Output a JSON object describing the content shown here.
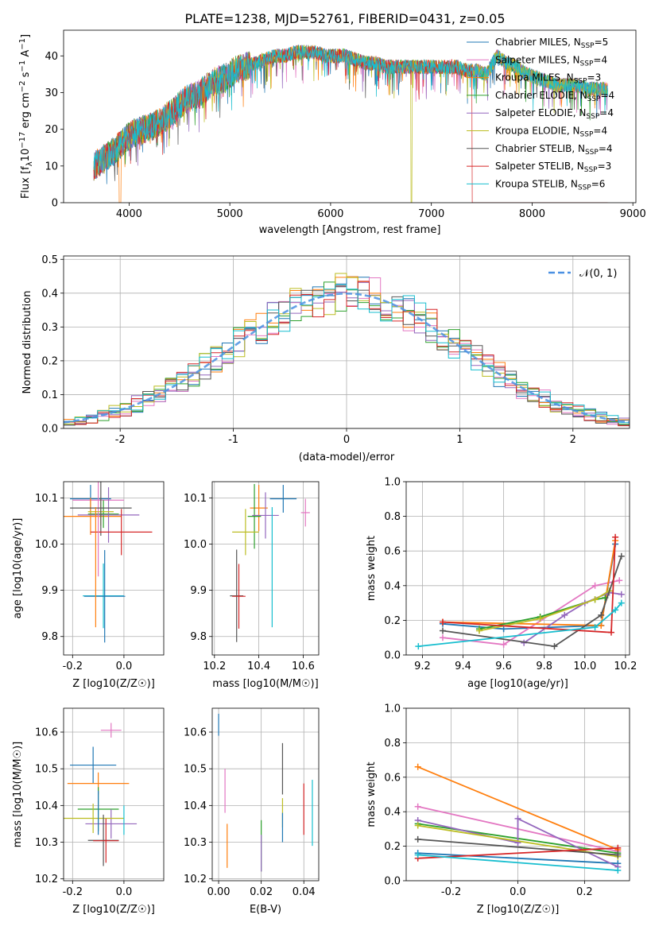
{
  "title": "PLATE=1238, MJD=52761, FIBERID=0431, z=0.05",
  "colors": [
    "#1f77b4",
    "#e377c2",
    "#ff7f0e",
    "#2ca02c",
    "#9467bd",
    "#bcbd22",
    "#555555",
    "#d62728",
    "#17becf"
  ],
  "chart_data": [
    {
      "type": "line",
      "panel": "spectrum",
      "xlabel": "wavelength [Angstrom, rest frame]",
      "ylabel": "Flux [f_λ10^-17 erg cm^-2 s^-1 A^-1]",
      "xlim": [
        3350,
        9030
      ],
      "ylim": [
        0,
        47
      ],
      "x_ticks": [
        4000,
        5000,
        6000,
        7000,
        8000,
        9000
      ],
      "y_ticks": [
        0,
        10,
        20,
        30,
        40
      ],
      "legend_position": "top-right",
      "series": [
        {
          "name": "Chabrier MILES, N_SSP=5",
          "legend_main": "Chabrier MILES, N",
          "legend_tail": "=5"
        },
        {
          "name": "Salpeter MILES, N_SSP=4",
          "legend_main": "Salpeter MILES, N",
          "legend_tail": "=4"
        },
        {
          "name": "Kroupa MILES, N_SSP=3",
          "legend_main": "Kroupa MILES, N",
          "legend_tail": "=3"
        },
        {
          "name": "Chabrier ELODIE, N_SSP=4",
          "legend_main": "Chabrier ELODIE, N",
          "legend_tail": "=4"
        },
        {
          "name": "Salpeter ELODIE, N_SSP=4",
          "legend_main": "Salpeter ELODIE, N",
          "legend_tail": "=4"
        },
        {
          "name": "Kroupa ELODIE, N_SSP=4",
          "legend_main": "Kroupa ELODIE, N",
          "legend_tail": "=4"
        },
        {
          "name": "Chabrier STELIB, N_SSP=4",
          "legend_main": "Chabrier STELIB, N",
          "legend_tail": "=4"
        },
        {
          "name": "Salpeter STELIB, N_SSP=3",
          "legend_main": "Salpeter STELIB, N",
          "legend_tail": "=3"
        },
        {
          "name": "Kroupa STELIB, N_SSP=6",
          "legend_main": "Kroupa STELIB, N",
          "legend_tail": "=6"
        }
      ],
      "legend_subscript": "SSP",
      "continuum": {
        "x": [
          3650,
          3750,
          3850,
          3950,
          4050,
          4150,
          4250,
          4350,
          4450,
          4550,
          4650,
          4750,
          4850,
          4950,
          5050,
          5150,
          5250,
          5350,
          5450,
          5550,
          5650,
          5750,
          5850,
          5950,
          6050,
          6150,
          6250,
          6350,
          6450,
          6550,
          6650,
          6750,
          6850,
          6950,
          7050,
          7150,
          7250,
          7350,
          7450,
          7550,
          7650,
          7750,
          7850,
          7950,
          8050,
          8150,
          8250,
          8350,
          8450,
          8550,
          8650,
          8750
        ],
        "y": [
          10,
          12,
          14,
          17,
          19,
          20,
          21,
          23,
          25,
          28,
          29,
          31,
          33,
          34,
          36,
          37,
          38,
          39,
          40,
          40,
          41,
          41,
          41,
          40,
          40,
          40,
          39,
          38,
          38,
          37,
          37,
          37,
          37,
          37,
          37,
          37,
          37,
          36,
          36,
          35,
          40,
          38,
          37,
          35,
          34,
          33,
          32,
          32,
          32,
          31,
          31,
          31
        ]
      },
      "notes": "Spectral model curves plotted between 3650 and 8750 Angstrom; dips to 0 near 3910, 6800 and beyond 7410 Angstrom"
    },
    {
      "type": "line",
      "panel": "residuals",
      "xlabel": "(data-model)/error",
      "ylabel": "Normed distribution",
      "xlim": [
        -2.5,
        2.5
      ],
      "ylim": [
        0,
        0.51
      ],
      "x_ticks": [
        -2,
        -1,
        0,
        1,
        2
      ],
      "y_ticks": [
        0.0,
        0.1,
        0.2,
        0.3,
        0.4,
        0.5
      ],
      "reference_label": "𝒩(0, 1)",
      "reference_curve": "normal(0,1)",
      "hist_bin_width": 0.1,
      "hist_amplitude_jitter": 0.06
    },
    {
      "type": "scatter",
      "panel": "age-vs-Z",
      "xlabel": "Z [log10(Z/Z☉)]",
      "ylabel": "age [log10(age/yr)]",
      "xlim": [
        -0.235,
        0.155
      ],
      "ylim": [
        9.76,
        10.135
      ],
      "x_ticks": [
        -0.2,
        0.0
      ],
      "y_ticks": [
        9.8,
        9.9,
        10.0,
        10.1
      ],
      "points": [
        {
          "x": -0.13,
          "y": 10.098,
          "xerr": 0.08,
          "yerr": 0.03
        },
        {
          "x": -0.1,
          "y": 10.095,
          "xerr": 0.1,
          "yerr": 0.04
        },
        {
          "x": -0.13,
          "y": 10.06,
          "xerr": 0.12,
          "yerr": 0.04
        },
        {
          "x": -0.08,
          "y": 10.065,
          "xerr": 0.06,
          "yerr": 0.03
        },
        {
          "x": -0.06,
          "y": 10.063,
          "xerr": 0.12,
          "yerr": 0.06
        },
        {
          "x": -0.09,
          "y": 10.07,
          "xerr": 0.05,
          "yerr": 0.03
        },
        {
          "x": -0.09,
          "y": 10.078,
          "xerr": 0.12,
          "yerr": 0.06
        },
        {
          "x": -0.01,
          "y": 10.026,
          "xerr": 0.12,
          "yerr": 0.05
        },
        {
          "x": -0.08,
          "y": 9.888,
          "xerr": 0.08,
          "yerr": 0.07
        },
        {
          "x": -0.075,
          "y": 9.887,
          "xerr": 0.08,
          "yerr": 0.1
        },
        {
          "x": -0.1,
          "y": 10.0,
          "xerr": 0.0,
          "yerr": 0.07
        },
        {
          "x": -0.11,
          "y": 9.95,
          "xerr": 0.0,
          "yerr": 0.13
        }
      ]
    },
    {
      "type": "scatter",
      "panel": "age-vs-mass",
      "xlabel": "mass [log10(M/M☉)]",
      "ylabel": "",
      "xlim": [
        10.19,
        10.67
      ],
      "ylim": [
        9.76,
        10.135
      ],
      "x_ticks": [
        10.2,
        10.4,
        10.6
      ],
      "y_ticks": [
        9.8,
        9.9,
        10.0,
        10.1
      ],
      "points": [
        {
          "x": 10.51,
          "y": 10.098,
          "xerr": 0.06,
          "yerr": 0.03
        },
        {
          "x": 10.61,
          "y": 10.068,
          "xerr": 0.02,
          "yerr": 0.03
        },
        {
          "x": 10.4,
          "y": 10.078,
          "xerr": 0.04,
          "yerr": 0.05
        },
        {
          "x": 10.38,
          "y": 10.06,
          "xerr": 0.03,
          "yerr": 0.07
        },
        {
          "x": 10.43,
          "y": 10.062,
          "xerr": 0.06,
          "yerr": 0.05
        },
        {
          "x": 10.34,
          "y": 10.026,
          "xerr": 0.06,
          "yerr": 0.05
        },
        {
          "x": 10.3,
          "y": 9.888,
          "xerr": 0.03,
          "yerr": 0.1
        },
        {
          "x": 10.31,
          "y": 9.887,
          "xerr": 0.03,
          "yerr": 0.07
        },
        {
          "x": 10.46,
          "y": 9.95,
          "xerr": 0.0,
          "yerr": 0.13
        }
      ]
    },
    {
      "type": "line",
      "panel": "mass-weight-vs-age",
      "xlabel": "age [log10(age/yr)]",
      "ylabel": "mass weight",
      "xlim": [
        9.12,
        10.22
      ],
      "ylim": [
        0,
        1
      ],
      "x_ticks": [
        9.2,
        9.4,
        9.6,
        9.8,
        10.0,
        10.2
      ],
      "y_ticks": [
        0.0,
        0.2,
        0.4,
        0.6,
        0.8,
        1.0
      ],
      "series": [
        {
          "x": [
            9.3,
            9.6,
            10.08,
            10.15
          ],
          "y": [
            0.18,
            0.15,
            0.17,
            0.64
          ]
        },
        {
          "x": [
            9.3,
            9.6,
            10.05,
            10.17
          ],
          "y": [
            0.1,
            0.06,
            0.4,
            0.43
          ]
        },
        {
          "x": [
            9.3,
            10.08,
            10.15
          ],
          "y": [
            0.19,
            0.17,
            0.66
          ]
        },
        {
          "x": [
            9.48,
            9.78,
            10.05,
            10.1
          ],
          "y": [
            0.15,
            0.22,
            0.32,
            0.33
          ]
        },
        {
          "x": [
            9.7,
            9.9,
            10.0,
            10.12,
            10.18
          ],
          "y": [
            0.07,
            0.23,
            0.3,
            0.36,
            0.35
          ]
        },
        {
          "x": [
            9.48,
            9.78,
            10.05,
            10.12
          ],
          "y": [
            0.14,
            0.21,
            0.32,
            0.37
          ]
        },
        {
          "x": [
            9.3,
            9.85,
            10.08,
            10.18
          ],
          "y": [
            0.14,
            0.05,
            0.23,
            0.57
          ]
        },
        {
          "x": [
            9.3,
            10.13,
            10.15
          ],
          "y": [
            0.19,
            0.13,
            0.68
          ]
        },
        {
          "x": [
            9.18,
            10.05,
            10.15,
            10.18
          ],
          "y": [
            0.05,
            0.16,
            0.26,
            0.3
          ]
        }
      ]
    },
    {
      "type": "scatter",
      "panel": "mass-vs-Z",
      "xlabel": "Z [log10(Z/Z☉)]",
      "ylabel": "mass [log10(M/M☉)]",
      "xlim": [
        -0.235,
        0.155
      ],
      "ylim": [
        10.195,
        10.665
      ],
      "x_ticks": [
        -0.2,
        0.0
      ],
      "y_ticks": [
        10.2,
        10.3,
        10.4,
        10.5,
        10.6
      ],
      "points": [
        {
          "x": -0.12,
          "y": 10.51,
          "xerr": 0.09,
          "yerr": 0.05
        },
        {
          "x": -0.05,
          "y": 10.605,
          "xerr": 0.04,
          "yerr": 0.02
        },
        {
          "x": -0.1,
          "y": 10.46,
          "xerr": 0.12,
          "yerr": 0.03
        },
        {
          "x": -0.1,
          "y": 10.39,
          "xerr": 0.08,
          "yerr": 0.06
        },
        {
          "x": -0.05,
          "y": 10.35,
          "xerr": 0.1,
          "yerr": 0.04
        },
        {
          "x": -0.12,
          "y": 10.365,
          "xerr": 0.12,
          "yerr": 0.04
        },
        {
          "x": -0.08,
          "y": 10.305,
          "xerr": 0.06,
          "yerr": 0.07
        },
        {
          "x": -0.07,
          "y": 10.304,
          "xerr": 0.05,
          "yerr": 0.06
        },
        {
          "x": 0.0,
          "y": 10.36,
          "xerr": 0.0,
          "yerr": 0.04
        },
        {
          "x": -0.1,
          "y": 10.38,
          "xerr": 0.0,
          "yerr": 0.06
        }
      ]
    },
    {
      "type": "scatter",
      "panel": "mass-vs-EBV",
      "xlabel": "E(B-V)",
      "ylabel": "",
      "xlim": [
        -0.003,
        0.047
      ],
      "ylim": [
        10.195,
        10.665
      ],
      "x_ticks": [
        0.0,
        0.02,
        0.04
      ],
      "y_ticks": [
        10.2,
        10.3,
        10.4,
        10.5,
        10.6
      ],
      "points": [
        {
          "x": 0.0,
          "y": 10.62,
          "yerr": 0.03
        },
        {
          "x": 0.003,
          "y": 10.44,
          "yerr": 0.06
        },
        {
          "x": 0.004,
          "y": 10.29,
          "yerr": 0.06
        },
        {
          "x": 0.02,
          "y": 10.29,
          "yerr": 0.07
        },
        {
          "x": 0.02,
          "y": 10.27,
          "yerr": 0.05
        },
        {
          "x": 0.03,
          "y": 10.38,
          "yerr": 0.04
        },
        {
          "x": 0.03,
          "y": 10.5,
          "yerr": 0.07
        },
        {
          "x": 0.04,
          "y": 10.39,
          "yerr": 0.07
        },
        {
          "x": 0.044,
          "y": 10.38,
          "yerr": 0.09
        },
        {
          "x": 0.03,
          "y": 10.34,
          "yerr": 0.04
        }
      ]
    },
    {
      "type": "line",
      "panel": "mass-weight-vs-Z",
      "xlabel": "Z [log10(Z/Z☉)]",
      "ylabel": "mass weight",
      "xlim": [
        -0.335,
        0.335
      ],
      "ylim": [
        0,
        1
      ],
      "x_ticks": [
        -0.2,
        0.0,
        0.2
      ],
      "y_ticks": [
        0.0,
        0.2,
        0.4,
        0.6,
        0.8,
        1.0
      ],
      "series": [
        {
          "x": [
            -0.3,
            0.3
          ],
          "y": [
            0.16,
            0.1
          ]
        },
        {
          "x": [
            -0.3,
            0.3
          ],
          "y": [
            0.43,
            0.17
          ]
        },
        {
          "x": [
            -0.3,
            0.3
          ],
          "y": [
            0.66,
            0.18
          ]
        },
        {
          "x": [
            -0.3,
            0.3
          ],
          "y": [
            0.33,
            0.16
          ]
        },
        {
          "x": [
            -0.3,
            0.0,
            0.0,
            0.3
          ],
          "y": [
            0.35,
            0.22,
            0.36,
            0.08
          ]
        },
        {
          "x": [
            -0.3,
            0.3
          ],
          "y": [
            0.32,
            0.14
          ]
        },
        {
          "x": [
            -0.3,
            0.3
          ],
          "y": [
            0.24,
            0.15
          ]
        },
        {
          "x": [
            -0.3,
            0.3
          ],
          "y": [
            0.13,
            0.19
          ]
        },
        {
          "x": [
            -0.3,
            0.3
          ],
          "y": [
            0.15,
            0.06
          ]
        }
      ]
    }
  ]
}
